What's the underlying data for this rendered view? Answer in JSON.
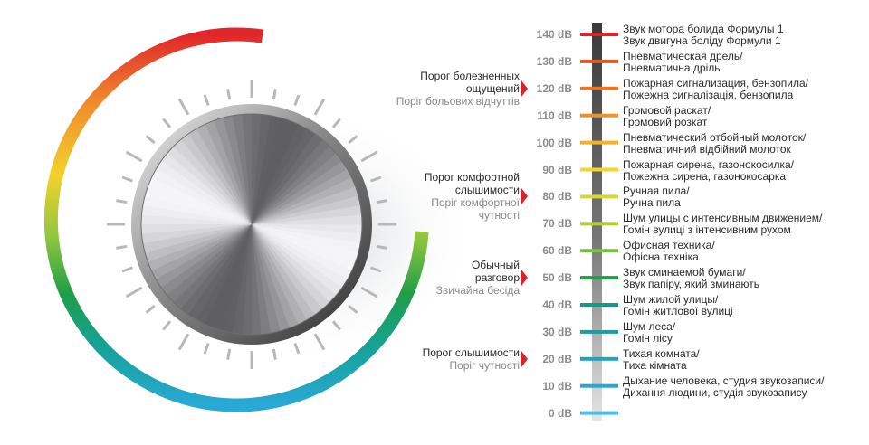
{
  "scale": [
    {
      "db": "140 dB",
      "color": "#d6262b",
      "ru": "Звук мотора болида Формулы 1",
      "ua": "Звук двигуна боліду Формули 1"
    },
    {
      "db": "130 dB",
      "color": "#e05a25",
      "ru": "Пневматическая дрель/",
      "ua": "Пневматична дріль"
    },
    {
      "db": "120 dB",
      "color": "#e8752a",
      "ru": "Пожарная сигнализация, бензопила/",
      "ua": "Пожежна сигналізація, бензопила"
    },
    {
      "db": "110 dB",
      "color": "#ee922b",
      "ru": "Громовой раскат/",
      "ua": "Громовий розкат"
    },
    {
      "db": "100 dB",
      "color": "#f4b22a",
      "ru": "Пневматический отбойный молоток/",
      "ua": "Пневматичний відбійний молоток"
    },
    {
      "db": "90 dB",
      "color": "#f2d72a",
      "ru": "Пожарная сирена, газонокосилка/",
      "ua": "Пожежна сирена, газонокосарка"
    },
    {
      "db": "80 dB",
      "color": "#d6d832",
      "ru": "Ручная пила/",
      "ua": "Ручна пила"
    },
    {
      "db": "70 dB",
      "color": "#b3cd3a",
      "ru": "Шум улицы с интенсивным движением/",
      "ua": "Гомін вулиці з інтенсивним рухом"
    },
    {
      "db": "60 dB",
      "color": "#7bbe43",
      "ru": "Офисная техника/",
      "ua": "Офісна техніка"
    },
    {
      "db": "50 dB",
      "color": "#1f9d48",
      "ru": "Звук сминаемой бумаги/",
      "ua": "Звук папіру, який зминають"
    },
    {
      "db": "40 dB",
      "color": "#159a84",
      "ru": "Шум жилой улицы/",
      "ua": "Гомін житлової вулиці"
    },
    {
      "db": "30 dB",
      "color": "#13a0a6",
      "ru": "Шум леса/",
      "ua": "Гомін лісу"
    },
    {
      "db": "20 dB",
      "color": "#1fa3c4",
      "ru": "Тихая комната/",
      "ua": "Тиха кімната"
    },
    {
      "db": "10 dB",
      "color": "#2aa6d3",
      "ru": "Дыхание человека, студия звукозаписи/",
      "ua": "Дихання людини, студія звукозапису"
    },
    {
      "db": "0 dB",
      "color": "#48bfe3",
      "ru": "",
      "ua": ""
    }
  ],
  "thresholds": [
    {
      "level_db": 120,
      "ru_lines": [
        "Порог болезненных",
        "ощущений"
      ],
      "ua_lines": [
        "Поріг больових відчуттів"
      ]
    },
    {
      "level_db": 80,
      "ru_lines": [
        "Порог комфортной",
        "слышимости"
      ],
      "ua_lines": [
        "Поріг комфортної",
        "чутності"
      ]
    },
    {
      "level_db": 50,
      "ru_lines": [
        "Обычный",
        "разговор"
      ],
      "ua_lines": [
        "Звичайна бесіда"
      ]
    },
    {
      "level_db": 20,
      "ru_lines": [
        "Порог слышимости"
      ],
      "ua_lines": [
        "Поріг чутності"
      ]
    }
  ],
  "colors": {
    "pointer": "#d8232a",
    "scale_bar": "#3a3a3a",
    "arc_gradient": [
      "#e1252b",
      "#f08a2b",
      "#f2d22a",
      "#8dc63f",
      "#1f9d48",
      "#15a39a",
      "#29a9d6"
    ]
  }
}
